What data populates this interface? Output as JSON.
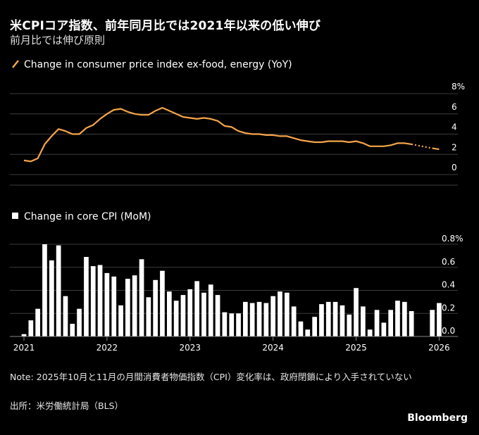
{
  "header": {
    "title": "米CPIコア指数、前年同月比では2021年以来の低い伸び",
    "subtitle": "前月比では伸び原則"
  },
  "chart_data": [
    {
      "type": "line",
      "legend": "Change in consumer price index ex-food, energy (YoY)",
      "color": "#f5a54a",
      "y_ticks": [
        "8%",
        "6",
        "4",
        "2",
        "0"
      ],
      "y_tick_values": [
        8,
        6,
        4,
        2,
        0
      ],
      "ylim": [
        0,
        8
      ],
      "x_range": [
        2021.0,
        2026.2
      ],
      "series": [
        {
          "x": [
            "2021-01",
            "2021-02",
            "2021-03",
            "2021-04",
            "2021-05",
            "2021-06",
            "2021-07",
            "2021-08",
            "2021-09",
            "2021-10",
            "2021-11",
            "2021-12",
            "2022-01",
            "2022-02",
            "2022-03",
            "2022-04",
            "2022-05",
            "2022-06",
            "2022-07",
            "2022-08",
            "2022-09",
            "2022-10",
            "2022-11",
            "2022-12",
            "2023-01",
            "2023-02",
            "2023-03",
            "2023-04",
            "2023-05",
            "2023-06",
            "2023-07",
            "2023-08",
            "2023-09",
            "2023-10",
            "2023-11",
            "2023-12",
            "2024-01",
            "2024-02",
            "2024-03",
            "2024-04",
            "2024-05",
            "2024-06",
            "2024-07",
            "2024-08",
            "2024-09",
            "2024-10",
            "2024-11",
            "2024-12",
            "2025-01",
            "2025-02",
            "2025-03",
            "2025-04",
            "2025-05",
            "2025-06",
            "2025-07",
            "2025-08",
            "2025-09",
            "2025-12",
            "2026-01"
          ],
          "values": [
            1.4,
            1.3,
            1.6,
            3.0,
            3.8,
            4.5,
            4.3,
            4.0,
            4.0,
            4.6,
            4.9,
            5.5,
            6.0,
            6.4,
            6.5,
            6.2,
            6.0,
            5.9,
            5.9,
            6.3,
            6.6,
            6.3,
            6.0,
            5.7,
            5.6,
            5.5,
            5.6,
            5.5,
            5.3,
            4.8,
            4.7,
            4.3,
            4.1,
            4.0,
            4.0,
            3.9,
            3.9,
            3.8,
            3.8,
            3.6,
            3.4,
            3.3,
            3.2,
            3.2,
            3.3,
            3.3,
            3.3,
            3.2,
            3.3,
            3.1,
            2.8,
            2.8,
            2.8,
            2.9,
            3.1,
            3.1,
            3.0,
            2.6,
            2.5
          ],
          "dashed_segment": [
            "2025-09",
            "2025-12"
          ]
        }
      ]
    },
    {
      "type": "bar",
      "legend": "Change in core CPI (MoM)",
      "color": "#ffffff",
      "y_ticks": [
        "0.8%",
        "0.6",
        "0.4",
        "0.2",
        "0.0"
      ],
      "y_tick_values": [
        0.8,
        0.6,
        0.4,
        0.2,
        0.0
      ],
      "ylim": [
        0,
        0.8
      ],
      "x_range": [
        2021.0,
        2026.2
      ],
      "x_tick_labels": [
        "2021",
        "2022",
        "2023",
        "2024",
        "2025",
        "2026"
      ],
      "series": [
        {
          "x": [
            "2021-01",
            "2021-02",
            "2021-03",
            "2021-04",
            "2021-05",
            "2021-06",
            "2021-07",
            "2021-08",
            "2021-09",
            "2021-10",
            "2021-11",
            "2021-12",
            "2022-01",
            "2022-02",
            "2022-03",
            "2022-04",
            "2022-05",
            "2022-06",
            "2022-07",
            "2022-08",
            "2022-09",
            "2022-10",
            "2022-11",
            "2022-12",
            "2023-01",
            "2023-02",
            "2023-03",
            "2023-04",
            "2023-05",
            "2023-06",
            "2023-07",
            "2023-08",
            "2023-09",
            "2023-10",
            "2023-11",
            "2023-12",
            "2024-01",
            "2024-02",
            "2024-03",
            "2024-04",
            "2024-05",
            "2024-06",
            "2024-07",
            "2024-08",
            "2024-09",
            "2024-10",
            "2024-11",
            "2024-12",
            "2025-01",
            "2025-02",
            "2025-03",
            "2025-04",
            "2025-05",
            "2025-06",
            "2025-07",
            "2025-08",
            "2025-09",
            "2025-12",
            "2026-01"
          ],
          "values": [
            0.02,
            0.14,
            0.24,
            0.8,
            0.66,
            0.79,
            0.35,
            0.11,
            0.24,
            0.69,
            0.61,
            0.62,
            0.55,
            0.52,
            0.27,
            0.5,
            0.53,
            0.67,
            0.34,
            0.49,
            0.57,
            0.39,
            0.31,
            0.36,
            0.41,
            0.48,
            0.38,
            0.45,
            0.36,
            0.21,
            0.2,
            0.2,
            0.3,
            0.29,
            0.3,
            0.29,
            0.35,
            0.39,
            0.38,
            0.26,
            0.13,
            0.06,
            0.17,
            0.28,
            0.3,
            0.3,
            0.27,
            0.19,
            0.42,
            0.26,
            0.06,
            0.23,
            0.12,
            0.23,
            0.31,
            0.3,
            0.22,
            0.23,
            0.29
          ]
        }
      ]
    }
  ],
  "note": "Note: 2025年10月と11月の月間消費者物価指数（CPI）変化率は、政府閉鎖により入手されていない",
  "source": "出所：米労働統計局（BLS）",
  "brand": "Bloomberg"
}
